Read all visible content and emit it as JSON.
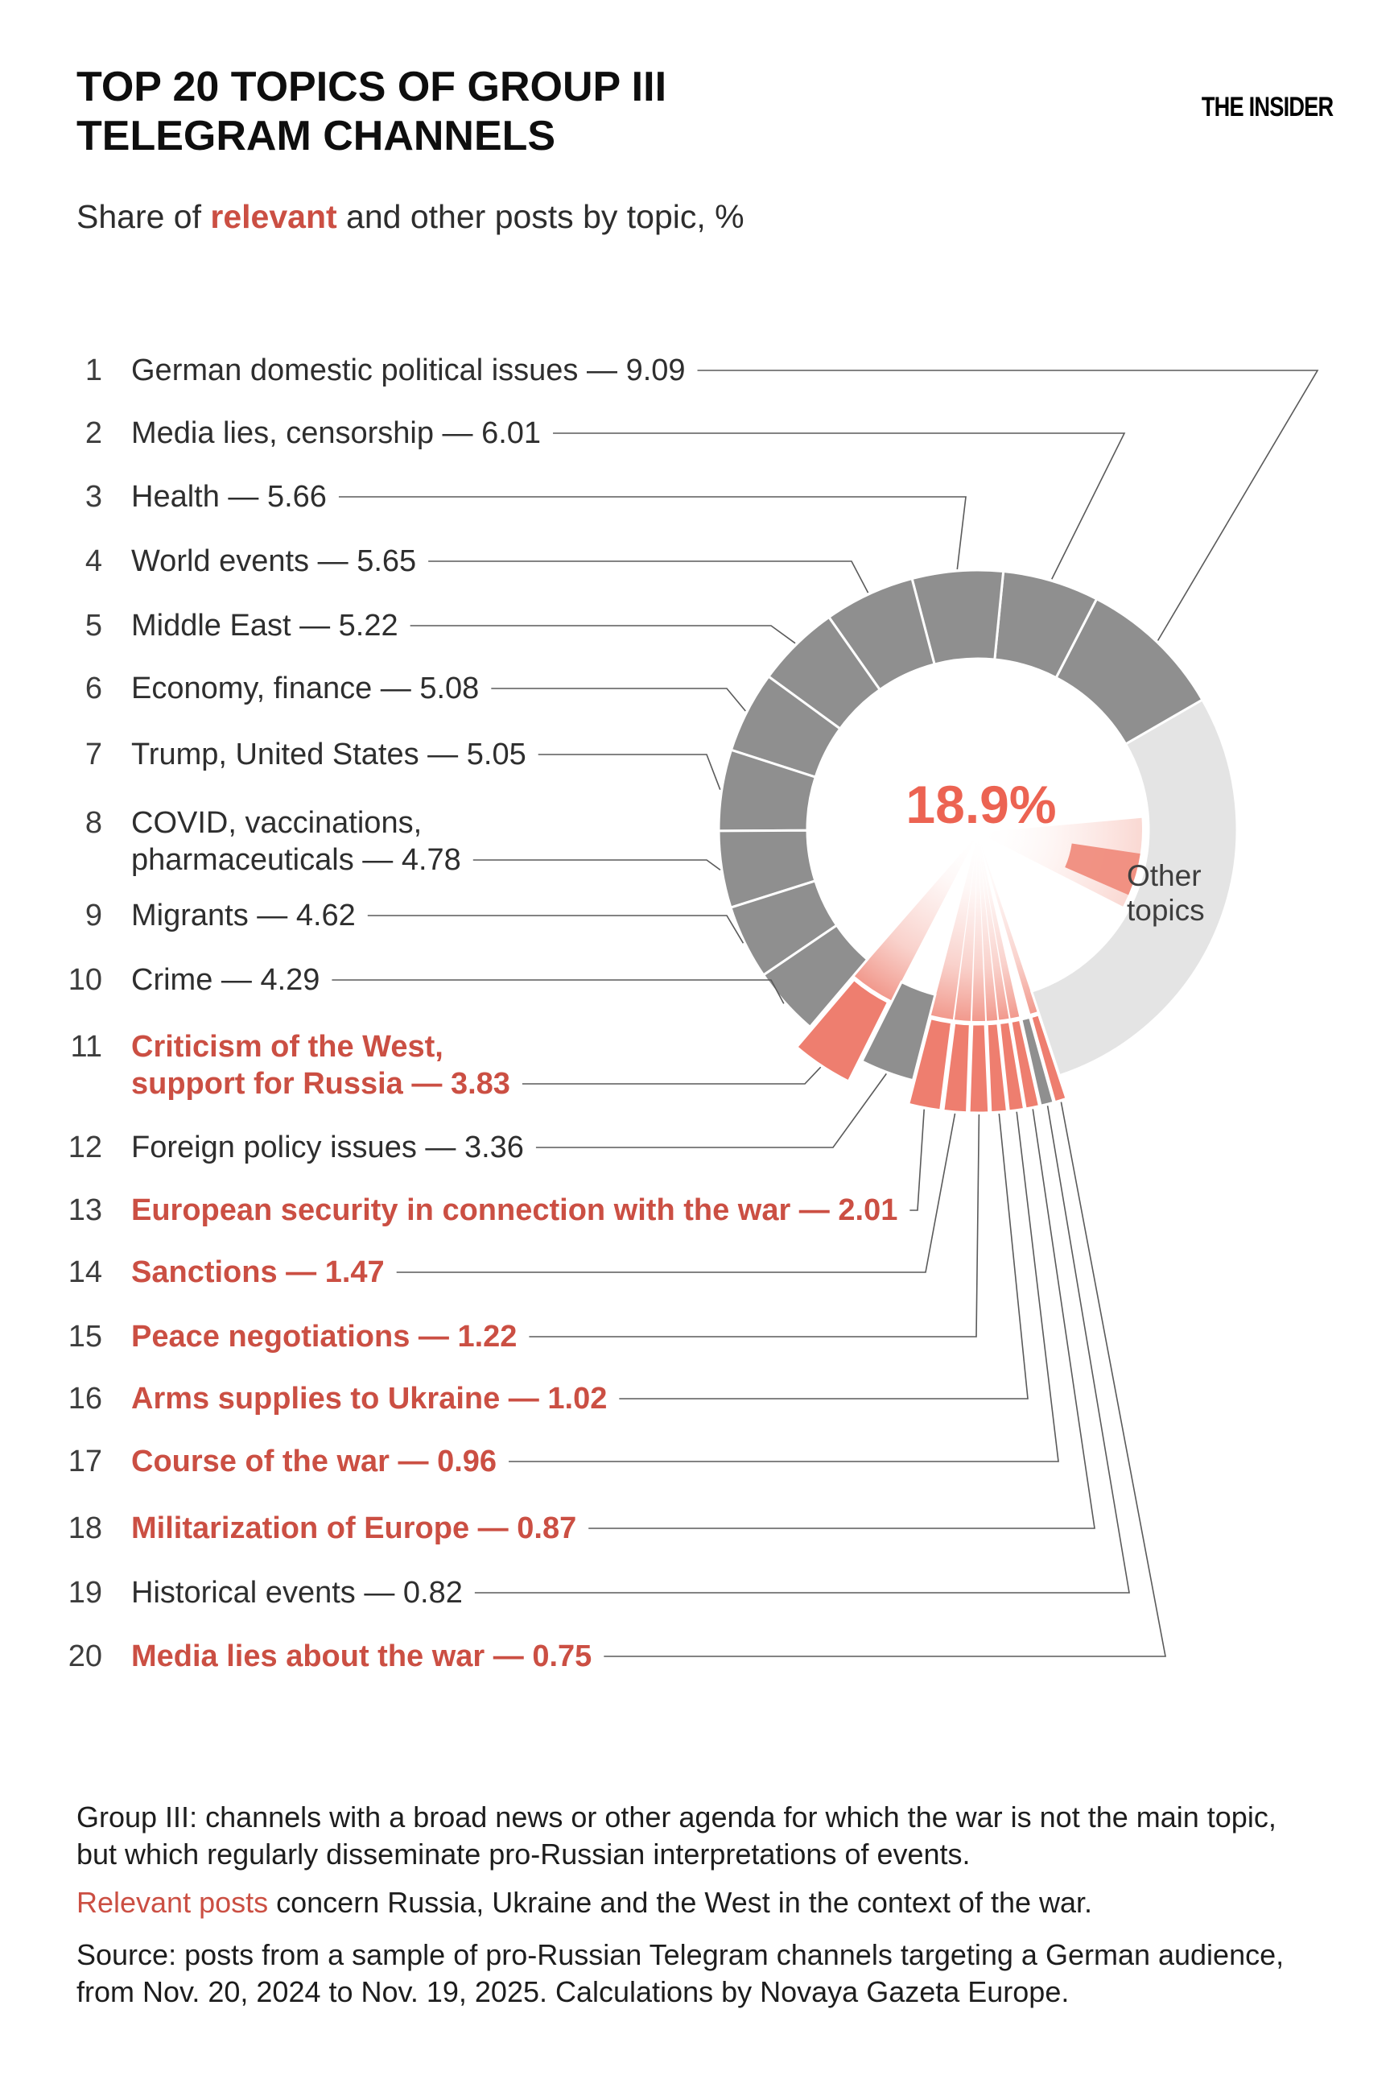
{
  "header": {
    "title_line1": "TOP 20 TOPICS OF GROUP III",
    "title_line2": "TELEGRAM CHANNELS",
    "brand": "THE INSIDER",
    "subtitle_prefix": "Share of ",
    "subtitle_highlight": "relevant",
    "subtitle_suffix": " and other posts by topic, %"
  },
  "chart_data": {
    "type": "pie",
    "donut": true,
    "unit": "%",
    "title": "Share of relevant and other posts by topic, %",
    "center_label": "18.9%",
    "other_label_line1": "Other",
    "other_label_line2": "topics",
    "other": {
      "label": "Other topics",
      "value": 28.24
    },
    "items": [
      {
        "rank": 1,
        "topic": "German domestic political issues",
        "value": 9.09,
        "relevant": false
      },
      {
        "rank": 2,
        "topic": "Media lies, censorship",
        "value": 6.01,
        "relevant": false
      },
      {
        "rank": 3,
        "topic": "Health",
        "value": 5.66,
        "relevant": false
      },
      {
        "rank": 4,
        "topic": "World events",
        "value": 5.65,
        "relevant": false
      },
      {
        "rank": 5,
        "topic": "Middle East",
        "value": 5.22,
        "relevant": false
      },
      {
        "rank": 6,
        "topic": "Economy, finance",
        "value": 5.08,
        "relevant": false
      },
      {
        "rank": 7,
        "topic": "Trump, United States",
        "value": 5.05,
        "relevant": false
      },
      {
        "rank": 8,
        "topic": "COVID, vaccinations,\npharmaceuticals",
        "value": 4.78,
        "relevant": false
      },
      {
        "rank": 9,
        "topic": "Migrants",
        "value": 4.62,
        "relevant": false
      },
      {
        "rank": 10,
        "topic": "Crime",
        "value": 4.29,
        "relevant": false
      },
      {
        "rank": 11,
        "topic": "Criticism of the West,\nsupport for Russia",
        "value": 3.83,
        "relevant": true
      },
      {
        "rank": 12,
        "topic": "Foreign policy issues",
        "value": 3.36,
        "relevant": false
      },
      {
        "rank": 13,
        "topic": "European security in connection with the war",
        "value": 2.01,
        "relevant": true
      },
      {
        "rank": 14,
        "topic": "Sanctions",
        "value": 1.47,
        "relevant": true
      },
      {
        "rank": 15,
        "topic": "Peace negotiations",
        "value": 1.22,
        "relevant": true
      },
      {
        "rank": 16,
        "topic": "Arms supplies to Ukraine",
        "value": 1.02,
        "relevant": true
      },
      {
        "rank": 17,
        "topic": "Course of the war",
        "value": 0.96,
        "relevant": true
      },
      {
        "rank": 18,
        "topic": "Militarization of Europe",
        "value": 0.87,
        "relevant": true
      },
      {
        "rank": 19,
        "topic": "Historical events",
        "value": 0.82,
        "relevant": false
      },
      {
        "rank": 20,
        "topic": "Media lies about the war",
        "value": 0.75,
        "relevant": true
      }
    ],
    "colors": {
      "gray_segment": "#8f8f8f",
      "other_segment": "#e4e4e4",
      "relevant_segment": "#ee7e6f",
      "relevant_text": "#cb4f43",
      "center_text": "#ec6352"
    },
    "legend_position": "none",
    "grid": false
  },
  "footer": {
    "group_note": "Group III: channels with a broad news or other agenda for which the war is not the main topic,\nbut which regularly disseminate pro-Russian interpretations of events.",
    "relevant_note_highlight": "Relevant posts",
    "relevant_note_rest": " concern Russia, Ukraine and the West in the context of the war.",
    "source_note": "Source: posts from a sample of pro-Russian Telegram channels targeting a German audience,\nfrom Nov. 20, 2024 to Nov. 19, 2025. Calculations by Novaya Gazeta Europe."
  }
}
